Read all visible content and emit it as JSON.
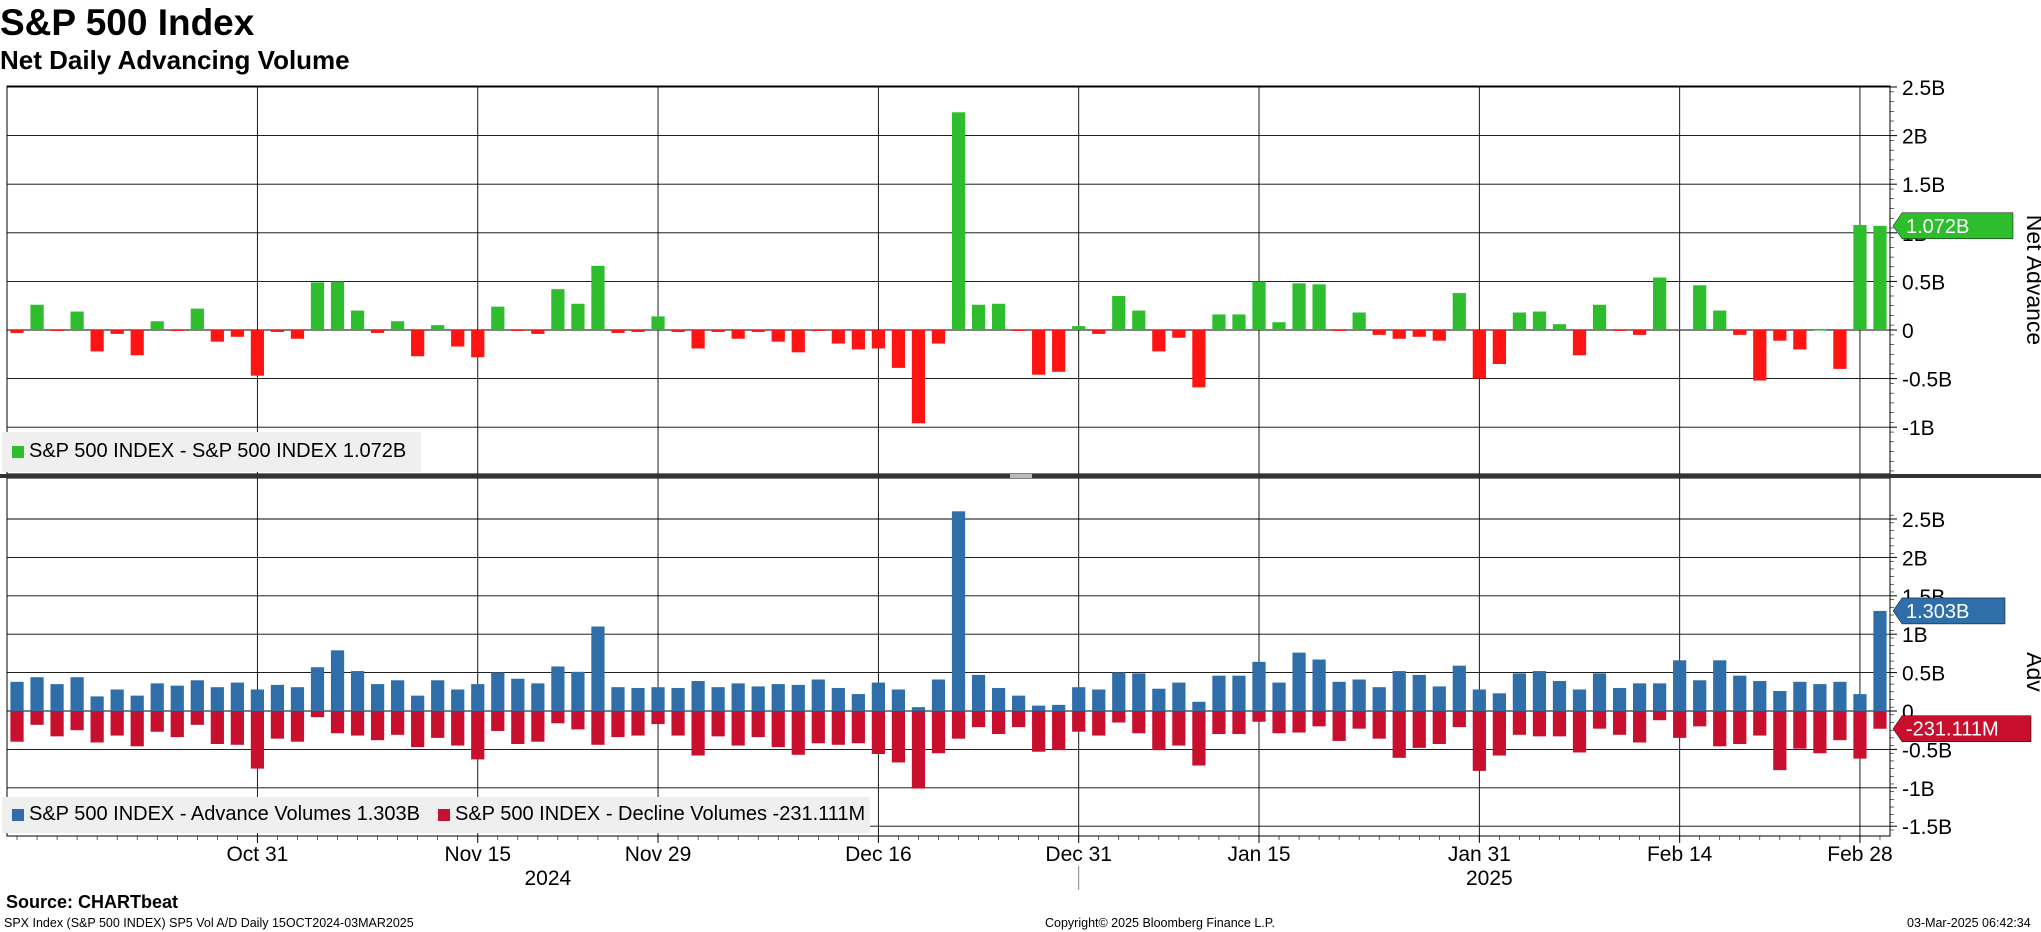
{
  "header": {
    "title": "S&P 500 Index",
    "subtitle": "Net Daily Advancing Volume"
  },
  "footer": {
    "source": "Source: CHARTbeat",
    "left": "SPX Index (S&P 500 INDEX) SP5 Vol A/D  Daily 15OCT2024-03MAR2025",
    "center": "Copyright© 2025 Bloomberg Finance L.P.",
    "right": "03-Mar-2025 06:42:34"
  },
  "colors": {
    "positive": "#2dbd2d",
    "negative": "#ff1414",
    "advance": "#2f6ea9",
    "decline": "#c8102e",
    "callout_green": "#2dbd2d",
    "callout_blue": "#2f6ea9",
    "callout_red": "#c8102e"
  },
  "chart_data": [
    {
      "type": "bar",
      "y_axis_title": "Net Advance",
      "ylim": [
        -1.45,
        2.5
      ],
      "y_ticks": [
        2.5,
        2,
        1.5,
        1,
        0.5,
        0,
        -0.5,
        -1
      ],
      "y_tick_labels": [
        "2.5B",
        "2B",
        "1.5B",
        "1B",
        "0.5B",
        "0",
        "-0.5B",
        "-1B"
      ],
      "grid": true,
      "legend_position": "bottom-left",
      "legend": [
        {
          "label": "S&P 500 INDEX - S&P 500 INDEX 1.072B",
          "color": "#2dbd2d"
        }
      ],
      "last_value_label": "1.072B",
      "last_value": 1.072,
      "series": [
        {
          "name": "S&P 500 INDEX - S&P 500 INDEX",
          "values": [
            -0.03,
            0.26,
            -0.01,
            0.19,
            -0.22,
            -0.04,
            -0.26,
            0.09,
            -0.01,
            0.22,
            -0.12,
            -0.07,
            -0.47,
            -0.02,
            -0.09,
            0.49,
            0.5,
            0.2,
            -0.03,
            0.09,
            -0.27,
            0.05,
            -0.17,
            -0.28,
            0.24,
            -0.01,
            -0.04,
            0.42,
            0.27,
            0.66,
            -0.03,
            -0.02,
            0.14,
            -0.02,
            -0.19,
            -0.02,
            -0.09,
            -0.02,
            -0.12,
            -0.23,
            -0.01,
            -0.14,
            -0.2,
            -0.19,
            -0.39,
            -0.96,
            -0.14,
            2.24,
            0.26,
            0.27,
            -0.01,
            -0.46,
            -0.43,
            0.04,
            -0.04,
            0.35,
            0.2,
            -0.22,
            -0.08,
            -0.59,
            0.16,
            0.16,
            0.5,
            0.08,
            0.48,
            0.47,
            -0.01,
            0.18,
            -0.05,
            -0.09,
            -0.07,
            -0.11,
            0.38,
            -0.5,
            -0.35,
            0.18,
            0.19,
            0.06,
            -0.26,
            0.26,
            -0.01,
            -0.05,
            0.54,
            0.01,
            0.46,
            0.2,
            -0.05,
            -0.52,
            -0.11,
            -0.2,
            0.0,
            -0.4,
            1.08,
            1.072
          ]
        }
      ]
    },
    {
      "type": "bar",
      "y_axis_title": "Adv",
      "ylim": [
        -1.65,
        2.65
      ],
      "y_ticks": [
        2.5,
        2,
        1.5,
        1,
        0.5,
        0,
        -0.5,
        -1,
        -1.5
      ],
      "y_tick_labels": [
        "2.5B",
        "2B",
        "1.5B",
        "1B",
        "0.5B",
        "0",
        "-0.5B",
        "-1B",
        "-1.5B"
      ],
      "grid": true,
      "legend_position": "bottom-left",
      "legend": [
        {
          "label": "S&P 500 INDEX - Advance Volumes 1.303B",
          "color": "#2f6ea9"
        },
        {
          "label": "S&P 500 INDEX - Decline Volumes -231.111M",
          "color": "#c8102e"
        }
      ],
      "last_value_labels": [
        "1.303B",
        "-231.111M"
      ],
      "last_values": [
        1.303,
        -0.231
      ],
      "series": [
        {
          "name": "S&P 500 INDEX - Advance Volumes",
          "values": [
            0.38,
            0.44,
            0.35,
            0.44,
            0.19,
            0.28,
            0.2,
            0.36,
            0.33,
            0.4,
            0.31,
            0.37,
            0.28,
            0.34,
            0.31,
            0.57,
            0.79,
            0.52,
            0.35,
            0.4,
            0.2,
            0.4,
            0.28,
            0.35,
            0.5,
            0.42,
            0.36,
            0.58,
            0.51,
            1.1,
            0.31,
            0.3,
            0.31,
            0.3,
            0.39,
            0.31,
            0.36,
            0.32,
            0.35,
            0.34,
            0.41,
            0.3,
            0.22,
            0.37,
            0.28,
            0.05,
            0.41,
            2.6,
            0.47,
            0.3,
            0.2,
            0.07,
            0.08,
            0.31,
            0.28,
            0.5,
            0.49,
            0.29,
            0.37,
            0.12,
            0.46,
            0.46,
            0.64,
            0.37,
            0.76,
            0.67,
            0.38,
            0.41,
            0.31,
            0.52,
            0.47,
            0.32,
            0.59,
            0.28,
            0.23,
            0.49,
            0.52,
            0.39,
            0.28,
            0.49,
            0.3,
            0.36,
            0.36,
            0.66,
            0.4,
            0.66,
            0.46,
            0.39,
            0.26,
            0.38,
            0.35,
            0.38,
            0.22,
            1.303
          ]
        },
        {
          "name": "S&P 500 INDEX - Decline Volumes",
          "values": [
            -0.4,
            -0.18,
            -0.33,
            -0.25,
            -0.41,
            -0.32,
            -0.46,
            -0.27,
            -0.34,
            -0.18,
            -0.43,
            -0.44,
            -0.75,
            -0.36,
            -0.4,
            -0.08,
            -0.29,
            -0.32,
            -0.38,
            -0.31,
            -0.47,
            -0.35,
            -0.45,
            -0.63,
            -0.26,
            -0.43,
            -0.4,
            -0.16,
            -0.24,
            -0.44,
            -0.34,
            -0.32,
            -0.17,
            -0.32,
            -0.58,
            -0.33,
            -0.45,
            -0.34,
            -0.47,
            -0.57,
            -0.42,
            -0.44,
            -0.42,
            -0.56,
            -0.67,
            -1.01,
            -0.55,
            -0.36,
            -0.21,
            -0.3,
            -0.21,
            -0.53,
            -0.51,
            -0.27,
            -0.32,
            -0.15,
            -0.29,
            -0.51,
            -0.45,
            -0.71,
            -0.3,
            -0.3,
            -0.14,
            -0.29,
            -0.28,
            -0.2,
            -0.39,
            -0.23,
            -0.36,
            -0.61,
            -0.48,
            -0.43,
            -0.21,
            -0.78,
            -0.58,
            -0.31,
            -0.33,
            -0.33,
            -0.54,
            -0.23,
            -0.31,
            -0.41,
            -0.12,
            -0.35,
            -0.2,
            -0.46,
            -0.43,
            -0.32,
            -0.77,
            -0.49,
            -0.55,
            -0.38,
            -0.62,
            -0.231
          ]
        }
      ]
    }
  ],
  "x_axis": {
    "ticks": [
      {
        "label": "Oct 31",
        "index": 12
      },
      {
        "label": "Nov 15",
        "index": 23
      },
      {
        "label": "Nov 29",
        "index": 32
      },
      {
        "label": "Dec 16",
        "index": 43
      },
      {
        "label": "Dec 31",
        "index": 53
      },
      {
        "label": "Jan 15",
        "index": 62
      },
      {
        "label": "Jan 31",
        "index": 73
      },
      {
        "label": "Feb 14",
        "index": 83
      },
      {
        "label": "Feb 28",
        "index": 92
      }
    ],
    "years": [
      {
        "label": "2024",
        "index": 26.5
      },
      {
        "label": "2025",
        "index": 73.5
      }
    ],
    "year_divider_index": 53
  }
}
